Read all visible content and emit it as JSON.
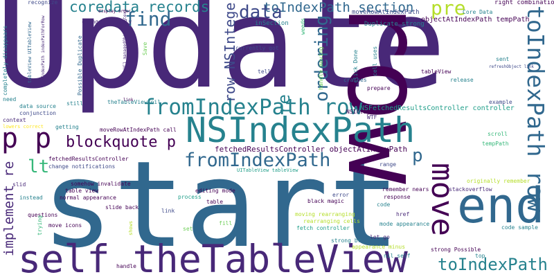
{
  "palette": {
    "dark_purple": "#440154",
    "purple": "#482878",
    "indigo": "#3e4989",
    "blue": "#31688e",
    "teal": "#26828e",
    "green_teal": "#1f9e89",
    "green": "#35b779",
    "light_green": "#6ece58",
    "lime": "#b5de2b",
    "yellow": "#fde725"
  },
  "words": [
    {
      "text": "start",
      "color": "#31688e"
    },
    {
      "text": "Update",
      "color": "#482878"
    },
    {
      "text": "row",
      "color": "#440154"
    },
    {
      "text": "self theTableView",
      "color": "#482878"
    },
    {
      "text": "NSIndexPath",
      "color": "#26828e"
    },
    {
      "text": "end",
      "color": "#31688e"
    },
    {
      "text": "fromIndexPath row",
      "color": "#26828e"
    },
    {
      "text": "fromIndexPath",
      "color": "#31688e"
    },
    {
      "text": "toIndexPath row",
      "color": "#31688e"
    },
    {
      "text": "toIndexPath",
      "color": "#26828e"
    },
    {
      "text": "move",
      "color": "#440154"
    },
    {
      "text": "toIndexPath section",
      "color": "#31688e"
    },
    {
      "text": "coredata records",
      "color": "#26828e"
    },
    {
      "text": "find",
      "color": "#31688e"
    },
    {
      "text": "data",
      "color": "#3e4989"
    },
    {
      "text": "pre",
      "color": "#b5de2b"
    },
    {
      "text": "p p",
      "color": "#440154"
    },
    {
      "text": "blockquote p",
      "color": "#440154"
    },
    {
      "text": "ordering",
      "color": "#31688e"
    },
    {
      "text": "implement re",
      "color": "#482878"
    },
    {
      "text": "re",
      "color": "#26828e"
    },
    {
      "text": "lt",
      "color": "#35b779"
    },
    {
      "text": "p",
      "color": "#31688e"
    },
    {
      "text": "row NSInteger",
      "color": "#3e4989"
    },
    {
      "text": "fetchedResultsController objectAtIndexPath",
      "color": "#440154"
    },
    {
      "text": "NSFetchedResultsController controller",
      "color": "#1f9e89"
    },
    {
      "text": "objectAtIndexPath tempPath",
      "color": "#440154"
    },
    {
      "text": "moveRowAtIndexPath",
      "color": "#3e4989"
    },
    {
      "text": "right combination",
      "color": "#440154"
    },
    {
      "text": "Core Data",
      "color": "#26828e"
    },
    {
      "text": "Duplicate strong",
      "color": "#26828e"
    },
    {
      "text": "inSection",
      "color": "#26828e"
    },
    {
      "text": "recognize",
      "color": "#3e4989"
    },
    {
      "text": "display order",
      "color": "#440154"
    },
    {
      "text": "change properly",
      "color": "#482878"
    },
    {
      "text": "Possible Duplicate",
      "color": "#31688e"
    },
    {
      "text": "completely disappears",
      "color": "#26828e"
    },
    {
      "text": "tableView UITableView",
      "color": "#31688e"
    },
    {
      "text": "NSIndexPath indexPathForRow",
      "color": "#482878"
    },
    {
      "text": "VC1 managedObjectContext",
      "color": "#482878"
    },
    {
      "text": "Save",
      "color": "#6ece58"
    },
    {
      "text": "currently got",
      "color": "#3e4989"
    },
    {
      "text": "tell",
      "color": "#3e4989"
    },
    {
      "text": "weeds",
      "color": "#35b779"
    },
    {
      "text": "click Done",
      "color": "#26828e"
    },
    {
      "text": "cell uses",
      "color": "#26828e"
    },
    {
      "text": "handle moving",
      "color": "#6ece58"
    },
    {
      "text": "tableView",
      "color": "#440154"
    },
    {
      "text": "release",
      "color": "#26828e"
    },
    {
      "text": "sent",
      "color": "#26828e"
    },
    {
      "text": "refreshObject link",
      "color": "#3e4989"
    },
    {
      "text": "crashes",
      "color": "#31688e"
    },
    {
      "text": "prepare",
      "color": "#440154"
    },
    {
      "text": "example",
      "color": "#3e4989"
    },
    {
      "text": "theTableView nil",
      "color": "#26828e"
    },
    {
      "text": "link",
      "color": "#440154"
    },
    {
      "text": "conjunction",
      "color": "#3e4989"
    },
    {
      "text": "data source",
      "color": "#26828e"
    },
    {
      "text": "still",
      "color": "#26828e"
    },
    {
      "text": "need",
      "color": "#26828e"
    },
    {
      "text": "context",
      "color": "#482878"
    },
    {
      "text": "getting",
      "color": "#26828e"
    },
    {
      "text": "moveRowAtIndexPath call",
      "color": "#440154"
    },
    {
      "text": "NSInteger",
      "color": "#440154"
    },
    {
      "text": "WTF",
      "color": "#482878"
    },
    {
      "text": "scroll",
      "color": "#35b779"
    },
    {
      "text": "tempPath",
      "color": "#35b779"
    },
    {
      "text": "fetchedResultsController",
      "color": "#440154"
    },
    {
      "text": "change notifications",
      "color": "#3e4989"
    },
    {
      "text": "range",
      "color": "#3e4989"
    },
    {
      "text": "table view",
      "color": "#440154"
    },
    {
      "text": "normal appearance",
      "color": "#440154"
    },
    {
      "text": "editing mode",
      "color": "#440154"
    },
    {
      "text": "remember nears",
      "color": "#440154"
    },
    {
      "text": "stackoverflow",
      "color": "#482878"
    },
    {
      "text": "error",
      "color": "#3e4989"
    },
    {
      "text": "response",
      "color": "#440154"
    },
    {
      "text": "black magic",
      "color": "#440154"
    },
    {
      "text": "code",
      "color": "#26828e"
    },
    {
      "text": "href",
      "color": "#482878"
    },
    {
      "text": "slid",
      "color": "#482878"
    },
    {
      "text": "instead",
      "color": "#26828e"
    },
    {
      "text": "questions",
      "color": "#440154"
    },
    {
      "text": "slide back",
      "color": "#440154"
    },
    {
      "text": "process",
      "color": "#1f9e89"
    },
    {
      "text": "table",
      "color": "#440154"
    },
    {
      "text": "link",
      "color": "#3e4989"
    },
    {
      "text": "moving rearranging",
      "color": "#b5de2b"
    },
    {
      "text": "rearranging cells",
      "color": "#b5de2b"
    },
    {
      "text": "fetch controller",
      "color": "#1f9e89"
    },
    {
      "text": "mode appearance",
      "color": "#26828e"
    },
    {
      "text": "code sample",
      "color": "#26828e"
    },
    {
      "text": "let go",
      "color": "#482878"
    },
    {
      "text": "move icons",
      "color": "#440154"
    },
    {
      "text": "trying",
      "color": "#35b779"
    },
    {
      "text": "fill",
      "color": "#6ece58"
    },
    {
      "text": "set",
      "color": "#6ece58"
    },
    {
      "text": "strong br",
      "color": "#26828e"
    },
    {
      "text": "appearance minus",
      "color": "#b5de2b"
    },
    {
      "text": "strong Possible",
      "color": "#440154"
    },
    {
      "text": "nil self",
      "color": "#26828e"
    },
    {
      "text": "top",
      "color": "#26828e"
    },
    {
      "text": "handle",
      "color": "#440154"
    },
    {
      "text": "somehow invalidate",
      "color": "#440154"
    },
    {
      "text": "UITableView tableView",
      "color": "#1f9e89"
    },
    {
      "text": "originally remember",
      "color": "#b5de2b"
    },
    {
      "text": "lowers correct",
      "color": "#fde725"
    },
    {
      "text": "shows",
      "color": "#b5de2b"
    }
  ]
}
